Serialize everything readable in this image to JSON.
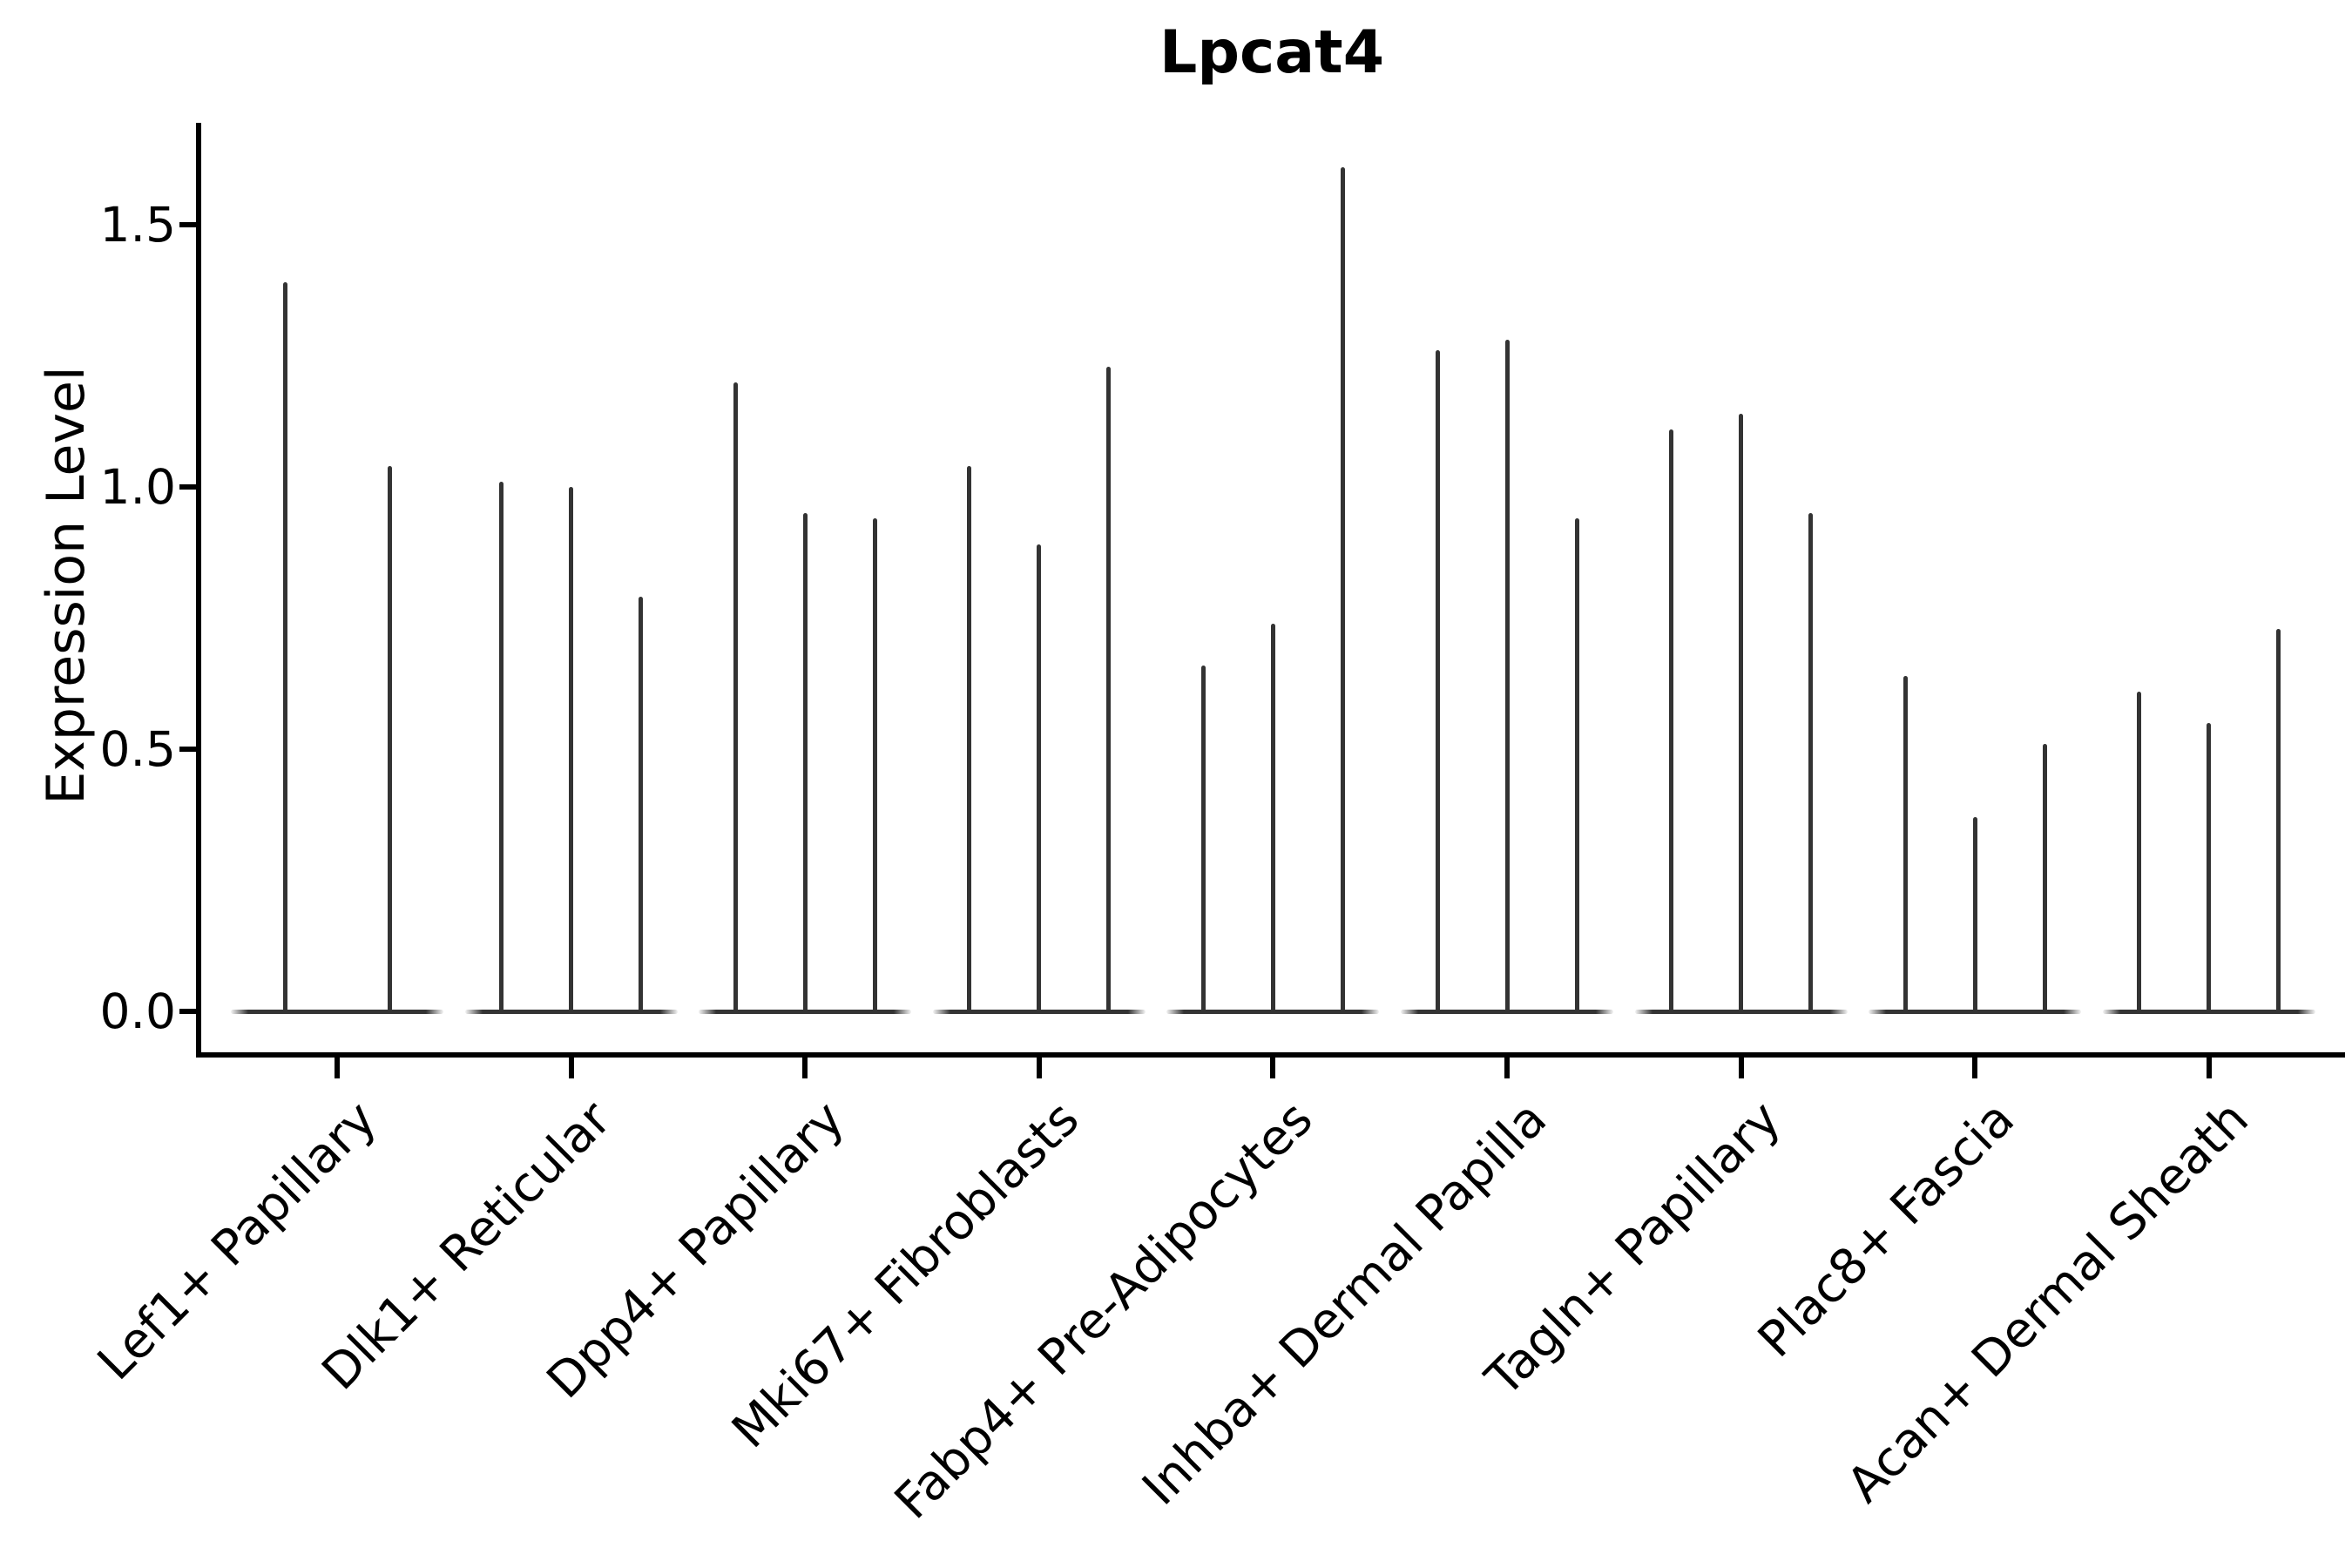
{
  "title": "Lpcat4",
  "y_axis": {
    "label": "Expression Level",
    "tick_labels": [
      "0.0",
      "0.5",
      "1.0",
      "1.5"
    ]
  },
  "chart_data": {
    "type": "violin",
    "title": "Lpcat4",
    "xlabel": "",
    "ylabel": "Expression Level",
    "ylim": [
      -0.08,
      1.72
    ],
    "yticks": [
      0.0,
      0.5,
      1.0,
      1.5
    ],
    "ytick_labels": [
      "0.0",
      "0.5",
      "1.0",
      "1.5"
    ],
    "grid": false,
    "legend": "none",
    "orientation": "vertical",
    "style_note": "very thin spike-shaped violins; distribution mass flattened at 0 with a narrow tail reaching the max expression value per violin",
    "categories": [
      "Lef1+ Papillary",
      "Dlk1+ Reticular",
      "Dpp4+ Papillary",
      "Mki67+ Fibroblasts",
      "Fabp4+ Pre-Adipocytes",
      "Inhba+ Dermal Papilla",
      "Tagln+ Papillary",
      "Plac8+ Fascia",
      "Acan+ Dermal Sheath"
    ],
    "groups": [
      {
        "category": "Lef1+ Papillary",
        "violin_max": [
          1.39,
          1.04
        ]
      },
      {
        "category": "Dlk1+ Reticular",
        "violin_max": [
          1.01,
          1.0,
          0.79
        ]
      },
      {
        "category": "Dpp4+ Papillary",
        "violin_max": [
          1.2,
          0.95,
          0.94
        ]
      },
      {
        "category": "Mki67+ Fibroblasts",
        "violin_max": [
          1.04,
          0.89,
          1.23
        ]
      },
      {
        "category": "Fabp4+ Pre-Adipocytes",
        "violin_max": [
          0.66,
          0.74,
          1.61
        ]
      },
      {
        "category": "Inhba+ Dermal Papilla",
        "violin_max": [
          1.26,
          1.28,
          0.94
        ]
      },
      {
        "category": "Tagln+ Papillary",
        "violin_max": [
          1.11,
          1.14,
          0.95
        ]
      },
      {
        "category": "Plac8+ Fascia",
        "violin_max": [
          0.64,
          0.37,
          0.51
        ]
      },
      {
        "category": "Acan+ Dermal Sheath",
        "violin_max": [
          0.61,
          0.55,
          0.73
        ]
      }
    ],
    "colors": {
      "violin": "#333333",
      "axis": "#000000",
      "text": "#000000",
      "background": "#ffffff"
    }
  }
}
